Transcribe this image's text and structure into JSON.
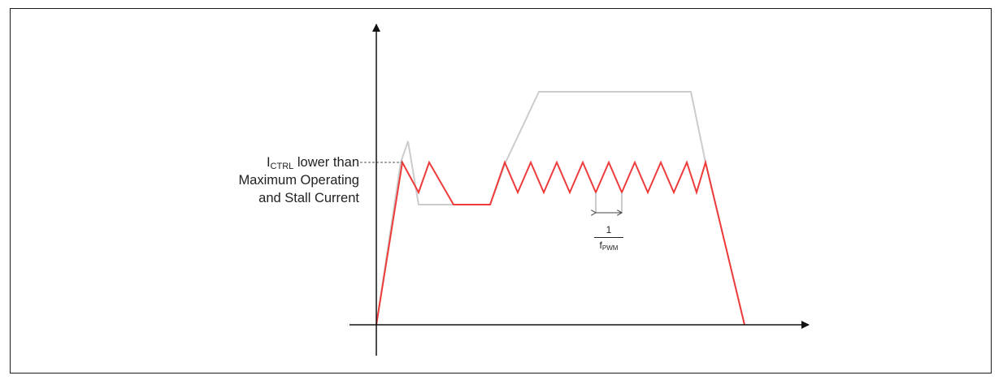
{
  "annotation": {
    "symbol": "I",
    "subscript": "CTRL",
    "line1_rest": " lower than",
    "line2": "Maximum Operating",
    "line3": "and Stall Current"
  },
  "period_label": {
    "numerator": "1",
    "denominator_symbol": "f",
    "denominator_subscript": "PWM"
  },
  "colors": {
    "pwm_current": "#ee3b3b",
    "uncontrolled_current": "#cccccc",
    "axes": "#111111",
    "text": "#222222"
  }
}
